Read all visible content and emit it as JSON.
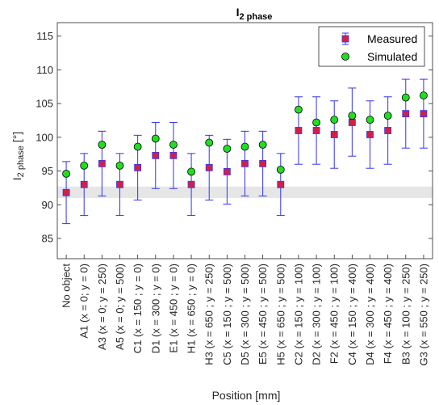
{
  "chart_data": {
    "type": "scatter",
    "title_main": "I",
    "title_sub": "2 phase",
    "ylabel_main": "I",
    "ylabel_sub": "2 phase",
    "ylabel_unit": "[°]",
    "xlabel": "Position [mm]",
    "ylim": [
      82,
      117
    ],
    "yticks": [
      85,
      90,
      95,
      100,
      105,
      110,
      115
    ],
    "grid": false,
    "legend_position": "top-right",
    "band": [
      91,
      92.7
    ],
    "categories": [
      "No object",
      "A1 (x = 0; y = 0)",
      "A3 (x = 0; y = 250)",
      "A5 (x = 0; y = 500)",
      "C1 (x = 150 ; y = 0)",
      "D1 (x = 300 ; y = 0)",
      "E1 (x = 450 ; y = 0)",
      "H1 (x = 650 ; y = 0)",
      "H3 (x = 650 ; y = 250)",
      "C5 (x = 150 ; y = 500)",
      "D5 (x = 300 ; y = 500)",
      "E5 (x = 450 ; y = 500)",
      "H5 (x = 650 ; y = 500)",
      "C2 (x = 150 ; y = 100)",
      "D2 (x = 300 ; y = 100)",
      "F2 (x = 450 ; y = 100)",
      "C4 (x = 150 ; y = 400)",
      "D4 (x = 300 ; y = 400)",
      "F4 (x = 450 ; y = 400)",
      "B3 (x = 100 ; y = 250)",
      "G3 (x = 550 ; y = 250)"
    ],
    "series": [
      {
        "name": "Measured",
        "marker": "square",
        "color": "#d0204a",
        "values": [
          91.8,
          93.0,
          96.1,
          93.0,
          95.5,
          97.3,
          97.3,
          93.0,
          95.5,
          94.9,
          96.1,
          96.1,
          93.0,
          101.0,
          101.0,
          100.4,
          102.2,
          100.4,
          101.0,
          103.5,
          103.5
        ],
        "err_low": [
          87.2,
          88.4,
          91.3,
          88.4,
          90.7,
          92.4,
          92.4,
          88.4,
          90.7,
          90.1,
          91.3,
          91.3,
          88.4,
          96.0,
          96.0,
          95.4,
          97.2,
          95.4,
          96.0,
          98.4,
          98.4
        ],
        "err_high": [
          96.4,
          97.6,
          100.9,
          97.6,
          100.3,
          102.2,
          102.2,
          97.6,
          100.3,
          99.7,
          100.9,
          100.9,
          97.6,
          106.0,
          106.0,
          105.4,
          107.3,
          105.4,
          106.0,
          108.6,
          108.6
        ]
      },
      {
        "name": "Simulated",
        "marker": "circle",
        "color": "#22dd22",
        "values": [
          94.6,
          95.8,
          98.9,
          95.8,
          98.6,
          99.8,
          98.9,
          94.9,
          99.2,
          98.3,
          98.6,
          98.9,
          95.2,
          104.1,
          102.2,
          102.6,
          103.2,
          102.6,
          103.2,
          105.9,
          106.2
        ]
      }
    ]
  }
}
